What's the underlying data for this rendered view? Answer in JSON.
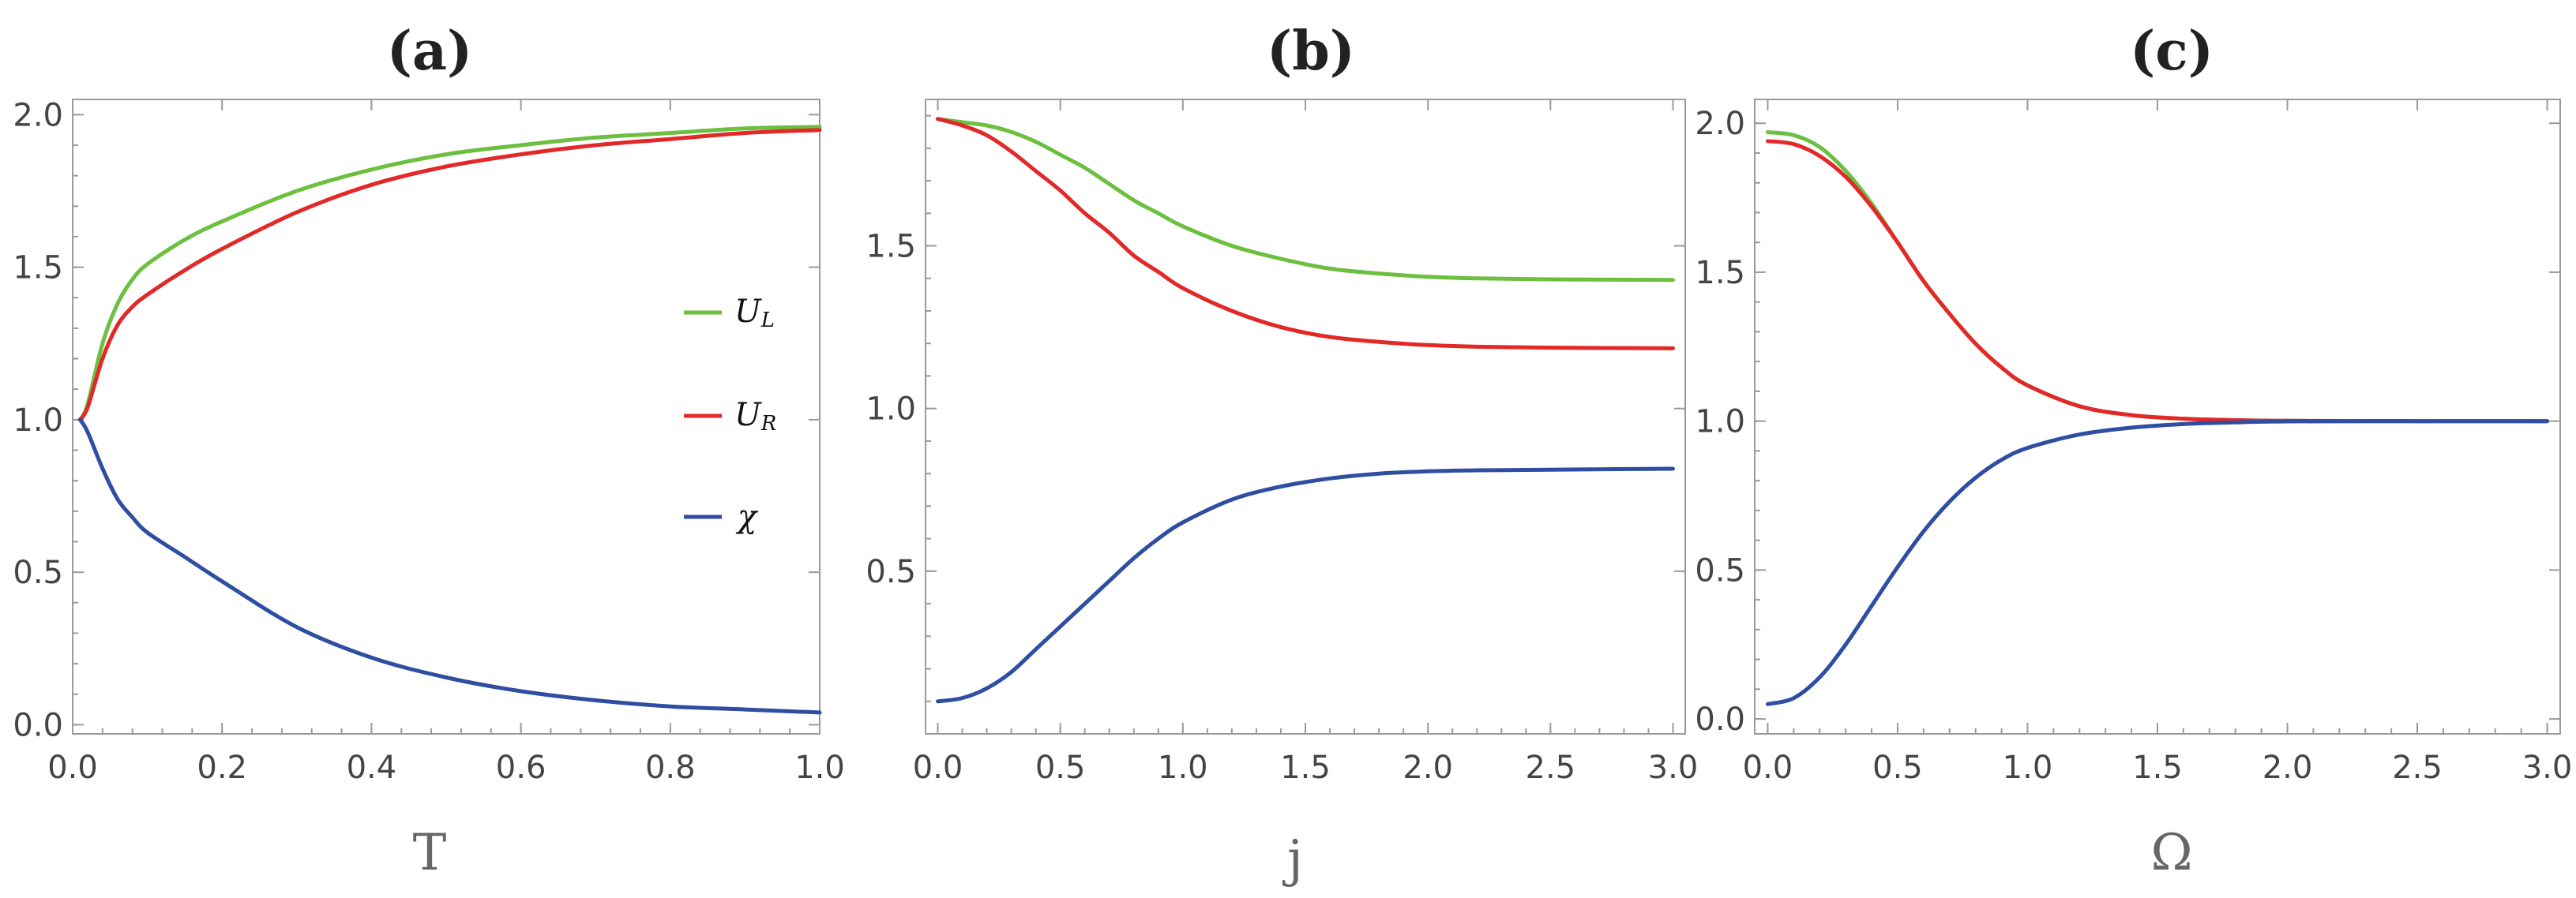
{
  "colors": {
    "U_L": "#6cbf3f",
    "U_R": "#e32828",
    "chi": "#2f4ea2"
  },
  "chart_data": [
    {
      "type": "line",
      "title": "(a)",
      "xlabel": "T",
      "ylabel": "",
      "xlim": [
        0.0,
        1.0
      ],
      "ylim": [
        -0.03,
        2.05
      ],
      "xticks": [
        "0.0",
        "0.2",
        "0.4",
        "0.6",
        "0.8",
        "1.0"
      ],
      "yticks": [
        "0.0",
        "0.5",
        "1.0",
        "1.5",
        "2.0"
      ],
      "legend": {
        "placement": "right",
        "entries": [
          {
            "base": "U",
            "sub": "L"
          },
          {
            "base": "U",
            "sub": "R"
          },
          {
            "base": "χ",
            "sub": ""
          }
        ]
      },
      "series": [
        {
          "name": "U_L",
          "x": [
            0.01,
            0.02,
            0.04,
            0.06,
            0.08,
            0.1,
            0.15,
            0.2,
            0.3,
            0.4,
            0.5,
            0.6,
            0.7,
            0.8,
            0.9,
            1.0
          ],
          "y": [
            1.0,
            1.05,
            1.25,
            1.38,
            1.46,
            1.51,
            1.59,
            1.65,
            1.75,
            1.82,
            1.87,
            1.9,
            1.925,
            1.94,
            1.955,
            1.96
          ]
        },
        {
          "name": "U_R",
          "x": [
            0.01,
            0.02,
            0.04,
            0.06,
            0.08,
            0.1,
            0.15,
            0.2,
            0.3,
            0.4,
            0.5,
            0.6,
            0.7,
            0.8,
            0.9,
            1.0
          ],
          "y": [
            1.0,
            1.04,
            1.2,
            1.31,
            1.37,
            1.41,
            1.49,
            1.56,
            1.68,
            1.77,
            1.83,
            1.87,
            1.9,
            1.92,
            1.94,
            1.95
          ]
        },
        {
          "name": "chi",
          "x": [
            0.01,
            0.02,
            0.04,
            0.06,
            0.08,
            0.1,
            0.15,
            0.2,
            0.3,
            0.4,
            0.5,
            0.6,
            0.7,
            0.8,
            0.9,
            1.0
          ],
          "y": [
            1.0,
            0.96,
            0.84,
            0.74,
            0.68,
            0.63,
            0.55,
            0.47,
            0.32,
            0.22,
            0.155,
            0.11,
            0.08,
            0.06,
            0.05,
            0.04
          ]
        }
      ]
    },
    {
      "type": "line",
      "title": "(b)",
      "xlabel": "j",
      "ylabel": "",
      "xlim": [
        -0.05,
        3.05
      ],
      "ylim": [
        0.0,
        1.95
      ],
      "xticks": [
        "0.0",
        "0.5",
        "1.0",
        "1.5",
        "2.0",
        "2.5",
        "3.0"
      ],
      "yticks": [
        "0.5",
        "1.0",
        "1.5"
      ],
      "series": [
        {
          "name": "U_L",
          "x": [
            0.0,
            0.1,
            0.2,
            0.3,
            0.4,
            0.5,
            0.6,
            0.7,
            0.8,
            0.9,
            1.0,
            1.2,
            1.4,
            1.6,
            1.8,
            2.0,
            2.2,
            2.5,
            3.0
          ],
          "y": [
            1.89,
            1.88,
            1.87,
            1.85,
            1.82,
            1.78,
            1.74,
            1.69,
            1.64,
            1.6,
            1.56,
            1.5,
            1.46,
            1.43,
            1.415,
            1.405,
            1.4,
            1.397,
            1.395
          ]
        },
        {
          "name": "U_R",
          "x": [
            0.0,
            0.1,
            0.2,
            0.3,
            0.4,
            0.5,
            0.6,
            0.7,
            0.8,
            0.9,
            1.0,
            1.2,
            1.4,
            1.6,
            1.8,
            2.0,
            2.2,
            2.5,
            3.0
          ],
          "y": [
            1.89,
            1.87,
            1.84,
            1.79,
            1.73,
            1.67,
            1.6,
            1.54,
            1.47,
            1.42,
            1.37,
            1.3,
            1.25,
            1.22,
            1.205,
            1.195,
            1.19,
            1.187,
            1.185
          ]
        },
        {
          "name": "chi",
          "x": [
            0.0,
            0.1,
            0.2,
            0.3,
            0.4,
            0.5,
            0.6,
            0.7,
            0.8,
            0.9,
            1.0,
            1.2,
            1.4,
            1.6,
            1.8,
            2.0,
            2.2,
            2.5,
            3.0
          ],
          "y": [
            0.1,
            0.11,
            0.14,
            0.19,
            0.26,
            0.33,
            0.4,
            0.47,
            0.54,
            0.6,
            0.65,
            0.72,
            0.76,
            0.785,
            0.8,
            0.807,
            0.81,
            0.812,
            0.815
          ]
        }
      ]
    },
    {
      "type": "line",
      "title": "(c)",
      "xlabel": "Ω",
      "ylabel": "",
      "xlim": [
        -0.05,
        3.05
      ],
      "ylim": [
        -0.05,
        2.08
      ],
      "xticks": [
        "0.0",
        "0.5",
        "1.0",
        "1.5",
        "2.0",
        "2.5",
        "3.0"
      ],
      "yticks": [
        "0.0",
        "0.5",
        "1.0",
        "1.5",
        "2.0"
      ],
      "series": [
        {
          "name": "U_L",
          "x": [
            0.0,
            0.1,
            0.2,
            0.3,
            0.4,
            0.5,
            0.6,
            0.7,
            0.8,
            0.9,
            1.0,
            1.2,
            1.4,
            1.6,
            1.8,
            2.0,
            2.5,
            3.0
          ],
          "y": [
            1.97,
            1.96,
            1.92,
            1.84,
            1.73,
            1.6,
            1.47,
            1.36,
            1.26,
            1.18,
            1.12,
            1.05,
            1.02,
            1.008,
            1.003,
            1.001,
            1.0,
            1.0
          ]
        },
        {
          "name": "U_R",
          "x": [
            0.0,
            0.1,
            0.2,
            0.3,
            0.4,
            0.5,
            0.6,
            0.7,
            0.8,
            0.9,
            1.0,
            1.2,
            1.4,
            1.6,
            1.8,
            2.0,
            2.5,
            3.0
          ],
          "y": [
            1.94,
            1.93,
            1.89,
            1.82,
            1.72,
            1.6,
            1.47,
            1.36,
            1.26,
            1.18,
            1.12,
            1.05,
            1.02,
            1.008,
            1.003,
            1.001,
            1.0,
            1.0
          ]
        },
        {
          "name": "chi",
          "x": [
            0.0,
            0.1,
            0.2,
            0.3,
            0.4,
            0.5,
            0.6,
            0.7,
            0.8,
            0.9,
            1.0,
            1.2,
            1.4,
            1.6,
            1.8,
            2.0,
            2.5,
            3.0
          ],
          "y": [
            0.05,
            0.07,
            0.14,
            0.25,
            0.38,
            0.51,
            0.63,
            0.73,
            0.81,
            0.87,
            0.91,
            0.955,
            0.978,
            0.99,
            0.996,
            0.999,
            1.0,
            1.0
          ]
        }
      ]
    }
  ]
}
